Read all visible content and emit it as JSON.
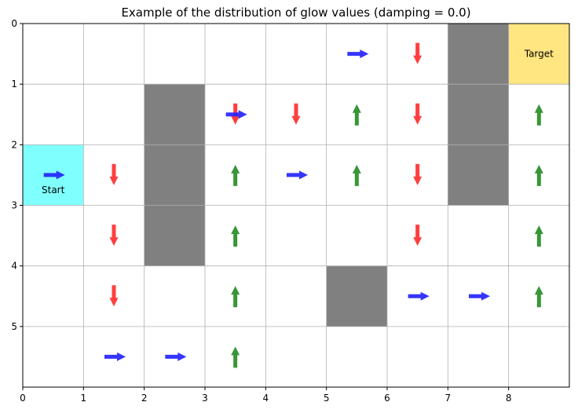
{
  "chart_data": {
    "type": "quiver-grid",
    "title": "Example of the distribution of glow values (damping = 0.0)",
    "xlabel": "",
    "ylabel": "",
    "xlim": [
      0,
      9
    ],
    "ylim": [
      6,
      0
    ],
    "x_ticks": [
      0,
      1,
      2,
      3,
      4,
      5,
      6,
      7,
      8
    ],
    "y_ticks": [
      0,
      1,
      2,
      3,
      4,
      5
    ],
    "grid": true,
    "colors": {
      "start": "#80ffff",
      "target": "#ffe680",
      "obstacle": "#808080",
      "right": "#1f1fff",
      "down": "#ff2a2a",
      "up": "#228b22"
    },
    "cells": {
      "start": {
        "col": 0,
        "row": 2,
        "label": "Start"
      },
      "target": {
        "col": 8,
        "row": 0,
        "label": "Target"
      }
    },
    "obstacles": [
      {
        "col": 2,
        "row": 1
      },
      {
        "col": 2,
        "row": 2
      },
      {
        "col": 2,
        "row": 3
      },
      {
        "col": 5,
        "row": 4
      },
      {
        "col": 7,
        "row": 0
      },
      {
        "col": 7,
        "row": 1
      },
      {
        "col": 7,
        "row": 2
      }
    ],
    "arrows": [
      {
        "col": 5,
        "row": 0,
        "dir": "right"
      },
      {
        "col": 6,
        "row": 0,
        "dir": "down"
      },
      {
        "col": 3,
        "row": 1,
        "dir": "down"
      },
      {
        "col": 3,
        "row": 1,
        "dir": "right"
      },
      {
        "col": 4,
        "row": 1,
        "dir": "down"
      },
      {
        "col": 5,
        "row": 1,
        "dir": "up"
      },
      {
        "col": 6,
        "row": 1,
        "dir": "down"
      },
      {
        "col": 8,
        "row": 1,
        "dir": "up"
      },
      {
        "col": 0,
        "row": 2,
        "dir": "right"
      },
      {
        "col": 1,
        "row": 2,
        "dir": "down"
      },
      {
        "col": 3,
        "row": 2,
        "dir": "up"
      },
      {
        "col": 4,
        "row": 2,
        "dir": "right"
      },
      {
        "col": 5,
        "row": 2,
        "dir": "up"
      },
      {
        "col": 6,
        "row": 2,
        "dir": "down"
      },
      {
        "col": 8,
        "row": 2,
        "dir": "up"
      },
      {
        "col": 1,
        "row": 3,
        "dir": "down"
      },
      {
        "col": 3,
        "row": 3,
        "dir": "up"
      },
      {
        "col": 6,
        "row": 3,
        "dir": "down"
      },
      {
        "col": 8,
        "row": 3,
        "dir": "up"
      },
      {
        "col": 1,
        "row": 4,
        "dir": "down"
      },
      {
        "col": 3,
        "row": 4,
        "dir": "up"
      },
      {
        "col": 6,
        "row": 4,
        "dir": "right"
      },
      {
        "col": 7,
        "row": 4,
        "dir": "right"
      },
      {
        "col": 8,
        "row": 4,
        "dir": "up"
      },
      {
        "col": 1,
        "row": 5,
        "dir": "right"
      },
      {
        "col": 2,
        "row": 5,
        "dir": "right"
      },
      {
        "col": 3,
        "row": 5,
        "dir": "up"
      }
    ]
  }
}
